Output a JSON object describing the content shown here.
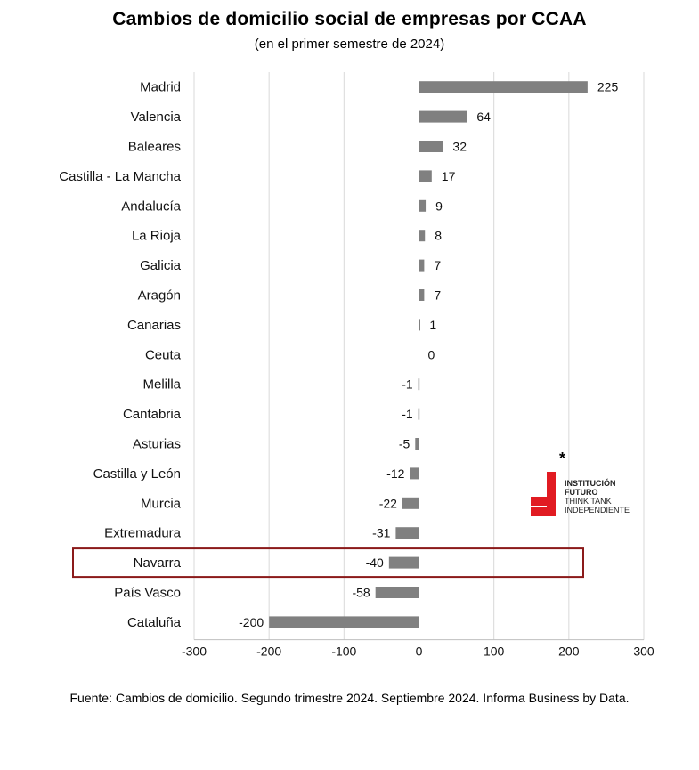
{
  "title": "Cambios de domicilio social de empresas por CCAA",
  "subtitle": "(en el primer semestre de 2024)",
  "source": "Fuente: Cambios de domicilio. Segundo trimestre 2024. Septiembre 2024. Informa Business by Data.",
  "logo": {
    "star": "*",
    "line1": "INSTITUCIÓN",
    "line2": "FUTURO",
    "line3": "THINK TANK",
    "line4": "INDEPENDIENTE",
    "color": "#e11b22"
  },
  "chart_data": {
    "type": "bar",
    "orientation": "horizontal",
    "categories": [
      "Madrid",
      "Valencia",
      "Baleares",
      "Castilla - La Mancha",
      "Andalucía",
      "La Rioja",
      "Galicia",
      "Aragón",
      "Canarias",
      "Ceuta",
      "Melilla",
      "Cantabria",
      "Asturias",
      "Castilla y León",
      "Murcia",
      "Extremadura",
      "Navarra",
      "País Vasco",
      "Cataluña"
    ],
    "values": [
      225,
      64,
      32,
      17,
      9,
      8,
      7,
      7,
      1,
      0,
      -1,
      -1,
      -5,
      -12,
      -22,
      -31,
      -40,
      -58,
      -200
    ],
    "value_labels": [
      "225",
      "64",
      "32",
      "17",
      "9",
      "8",
      "7",
      "7",
      "1",
      "0",
      "-1",
      "-1",
      "-5",
      "-12",
      "-22",
      "-31",
      "-40",
      "-58",
      "-200"
    ],
    "xlim": [
      -300,
      300
    ],
    "ticks": [
      -300,
      -200,
      -100,
      0,
      100,
      200,
      300
    ],
    "tick_labels": [
      "-300",
      "-200",
      "-100",
      "0",
      "100",
      "200",
      "300"
    ],
    "grid": true,
    "bar_color": "#808080",
    "highlight_category": "Navarra",
    "highlight_color": "#8b1a1a"
  }
}
